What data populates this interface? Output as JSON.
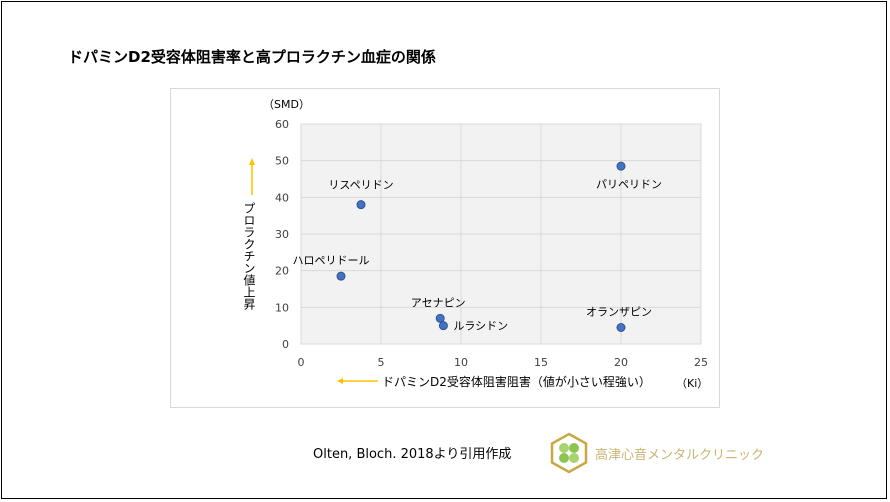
{
  "title": "ドパミンD2受容体阻害率と高プロラクチン血症の関係",
  "source": "Olten, Bloch. 2018より引用作成",
  "clinic_name": "高津心音メンタルクリニック",
  "colors": {
    "point": "#4472c4",
    "plot_bg": "#f2f2f2",
    "arrow": "#ffc000",
    "clinic": "#c9b470"
  },
  "chart_data": {
    "type": "scatter",
    "xlabel": "ドパミンD2受容体阻害阻害（値が小さい程強い）",
    "xunit": "（Ki）",
    "ylabel": "プロラクチン値上昇",
    "yunit": "（SMD）",
    "xlim": [
      0,
      25
    ],
    "ylim": [
      0,
      60
    ],
    "xticks": [
      0,
      5,
      10,
      15,
      20,
      25
    ],
    "yticks": [
      0,
      10,
      20,
      30,
      40,
      50,
      60
    ],
    "grid": true,
    "points": [
      {
        "label": "リスペリドン",
        "x": 3.75,
        "y": 38
      },
      {
        "label": "パリペリドン",
        "x": 20,
        "y": 48.5
      },
      {
        "label": "ハロペリドール",
        "x": 2.5,
        "y": 18.5
      },
      {
        "label": "アセナピン",
        "x": 8.7,
        "y": 7
      },
      {
        "label": "ルラシドン",
        "x": 8.9,
        "y": 5
      },
      {
        "label": "オランザピン",
        "x": 20,
        "y": 4.5
      }
    ]
  }
}
